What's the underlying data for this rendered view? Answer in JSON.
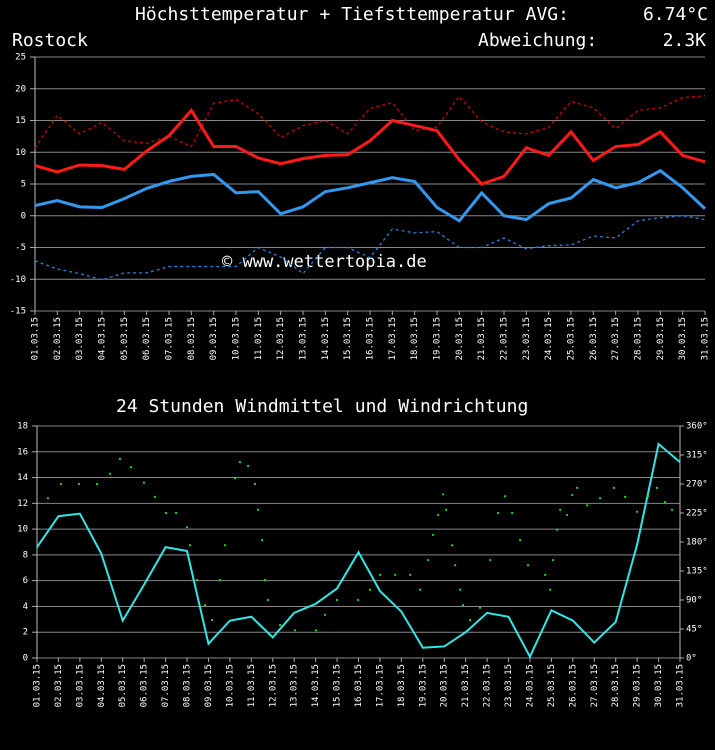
{
  "chart_data": [
    {
      "type": "line",
      "title_parts": [
        {
          "text": "Höchsttemperatur",
          "color": "#ff1a1a"
        },
        {
          "text": "+",
          "color": "#ffffff"
        },
        {
          "text": "Tiefsttemperatur",
          "color": "#3399ff"
        },
        {
          "text": "AVG:",
          "color": "#ffffff"
        },
        {
          "text": "6.74°C",
          "color": "#ffff00"
        }
      ],
      "location": {
        "text": "Rostock",
        "color": "#33dd33"
      },
      "deviation_parts": [
        {
          "text": "Abweichung:",
          "color": "#ffffff"
        },
        {
          "text": "2.3K",
          "color": "#ff1a1a"
        }
      ],
      "watermark": "© www.wettertopia.de",
      "categories": [
        "01.03.15",
        "02.03.15",
        "03.03.15",
        "04.03.15",
        "05.03.15",
        "06.03.15",
        "07.03.15",
        "08.03.15",
        "09.03.15",
        "10.03.15",
        "11.03.15",
        "12.03.15",
        "13.03.15",
        "14.03.15",
        "15.03.15",
        "16.03.15",
        "17.03.15",
        "18.03.15",
        "19.03.15",
        "20.03.15",
        "21.03.15",
        "22.03.15",
        "23.03.15",
        "24.03.15",
        "25.03.15",
        "26.03.15",
        "27.03.15",
        "28.03.15",
        "29.03.15",
        "30.03.15",
        "31.03.15"
      ],
      "series": [
        {
          "color": "#cc0000",
          "dash": true,
          "values": [
            10.7,
            15.8,
            12.9,
            14.7,
            11.8,
            11.4,
            12.5,
            10.9,
            17.7,
            18.3,
            16.1,
            12.3,
            14.2,
            15.0,
            12.9,
            16.9,
            17.8,
            13.4,
            14.0,
            18.8,
            14.8,
            13.2,
            12.9,
            13.9,
            18.0,
            17.0,
            13.7,
            16.6,
            17.0,
            18.6,
            18.9
          ]
        },
        {
          "color": "#2a7fd4",
          "dash": true,
          "values": [
            -7.1,
            -8.4,
            -9.1,
            -10.1,
            -9.0,
            -9.0,
            -8.0,
            -8.0,
            -8.0,
            -8.0,
            -5.0,
            -6.5,
            -9.1,
            -5.0,
            -5.0,
            -6.6,
            -2.1,
            -2.7,
            -2.5,
            -5.0,
            -5.0,
            -3.5,
            -5.2,
            -4.7,
            -4.6,
            -3.2,
            -3.5,
            -0.8,
            -0.3,
            0,
            -0.6
          ]
        },
        {
          "color": "#ff1a1a",
          "dash": false,
          "values": [
            7.9,
            6.9,
            8.0,
            7.9,
            7.3,
            10.2,
            12.6,
            16.6,
            10.9,
            10.9,
            9.1,
            8.2,
            9.0,
            9.5,
            9.6,
            11.8,
            15.0,
            14.2,
            13.4,
            8.8,
            5.0,
            6.2,
            10.7,
            9.5,
            13.2,
            8.7,
            10.9,
            11.2,
            13.2,
            9.5,
            8.5
          ]
        },
        {
          "color": "#3399ee",
          "dash": false,
          "values": [
            1.6,
            2.4,
            1.4,
            1.3,
            2.7,
            4.3,
            5.4,
            6.2,
            6.5,
            3.6,
            3.8,
            0.3,
            1.4,
            3.8,
            4.4,
            5.2,
            6.0,
            5.4,
            1.3,
            -0.8,
            3.6,
            0,
            -0.6,
            1.9,
            2.8,
            5.7,
            4.4,
            5.2,
            7.1,
            4.4,
            1.1
          ]
        }
      ],
      "ylim": [
        -15,
        25
      ],
      "yticks": [
        -15,
        -10,
        -5,
        0,
        5,
        10,
        15,
        20,
        25
      ],
      "grid": true
    },
    {
      "type": "line",
      "title_parts": [
        {
          "text": "24 Stunden",
          "color": "#ffffff"
        },
        {
          "text": "Windmittel",
          "color": "#33e6e6"
        },
        {
          "text": "und",
          "color": "#ffffff"
        },
        {
          "text": "Windrichtung",
          "color": "#22dd22"
        }
      ],
      "categories": [
        "01.03.15",
        "02.03.15",
        "03.03.15",
        "04.03.15",
        "05.03.15",
        "06.03.15",
        "07.03.15",
        "08.03.15",
        "09.03.15",
        "10.03.15",
        "11.03.15",
        "12.03.15",
        "13.03.15",
        "14.03.15",
        "15.03.15",
        "16.03.15",
        "17.03.15",
        "18.03.15",
        "19.03.15",
        "20.03.15",
        "21.03.15",
        "22.03.15",
        "23.03.15",
        "24.03.15",
        "25.03.15",
        "26.03.15",
        "27.03.15",
        "28.03.15",
        "29.03.15",
        "30.03.15",
        "31.03.15"
      ],
      "series": [
        {
          "color": "#33e6e6",
          "values": [
            8.6,
            11.0,
            11.2,
            8.1,
            2.9,
            5.7,
            8.6,
            8.3,
            1.1,
            2.9,
            3.2,
            1.6,
            3.5,
            4.2,
            5.4,
            8.2,
            5.2,
            3.6,
            0.8,
            0.9,
            2.0,
            3.5,
            3.2,
            0.1,
            3.7,
            2.9,
            1.2,
            2.8,
            8.8,
            16.6,
            15.2
          ]
        },
        {
          "type": "scatter",
          "axis": "y2",
          "color": "#22dd22",
          "x": [
            1.51,
            2.12,
            2.96,
            3.8,
            4.41,
            4.87,
            5.38,
            5.99,
            6.5,
            7.02,
            7.49,
            8.0,
            8.14,
            8.47,
            8.84,
            9.17,
            9.54,
            9.77,
            10.24,
            10.47,
            10.85,
            11.17,
            11.31,
            11.5,
            11.64,
            11.78,
            12.34,
            13.04,
            14.02,
            14.44,
            15.0,
            15.98,
            16.54,
            17.01,
            17.71,
            18.41,
            18.87,
            19.25,
            19.48,
            19.71,
            19.95,
            20.09,
            20.37,
            20.51,
            20.74,
            20.88,
            21.21,
            21.67,
            22.14,
            22.51,
            22.84,
            23.17,
            23.54,
            23.91,
            24.71,
            24.94,
            25.08,
            25.27,
            25.41,
            25.73,
            25.97,
            26.2,
            26.67,
            27.27,
            27.92,
            28.44,
            29.0,
            29.51,
            29.93,
            30.3,
            30.63
          ],
          "values": [
            248,
            270,
            270,
            270,
            286,
            309,
            296,
            272,
            250,
            225,
            225,
            203,
            175,
            121,
            82,
            59,
            121,
            175,
            279,
            304,
            298,
            270,
            230,
            183,
            121,
            90,
            51,
            43,
            43,
            67,
            90,
            90,
            106,
            129,
            129,
            129,
            106,
            152,
            191,
            222,
            254,
            230,
            175,
            144,
            106,
            82,
            59,
            78,
            152,
            225,
            251,
            225,
            183,
            144,
            129,
            106,
            152,
            199,
            230,
            222,
            253,
            264,
            237,
            248,
            264,
            250,
            227,
            251,
            264,
            242,
            230
          ]
        }
      ],
      "xlim": [
        1,
        31
      ],
      "ylim": [
        0,
        18
      ],
      "yticks": [
        0,
        2,
        4,
        6,
        8,
        10,
        12,
        14,
        16,
        18
      ],
      "y2lim": [
        0,
        360
      ],
      "y2ticks": [
        {
          "value": 0,
          "label": "0°"
        },
        {
          "value": 45,
          "label": "45°"
        },
        {
          "value": 90,
          "label": "90°"
        },
        {
          "value": 135,
          "label": "135°"
        },
        {
          "value": 180,
          "label": "180°"
        },
        {
          "value": 225,
          "label": "225°"
        },
        {
          "value": 270,
          "label": "270°"
        },
        {
          "value": 315,
          "label": "315°"
        },
        {
          "value": 360,
          "label": "360°"
        }
      ],
      "grid": true
    }
  ]
}
